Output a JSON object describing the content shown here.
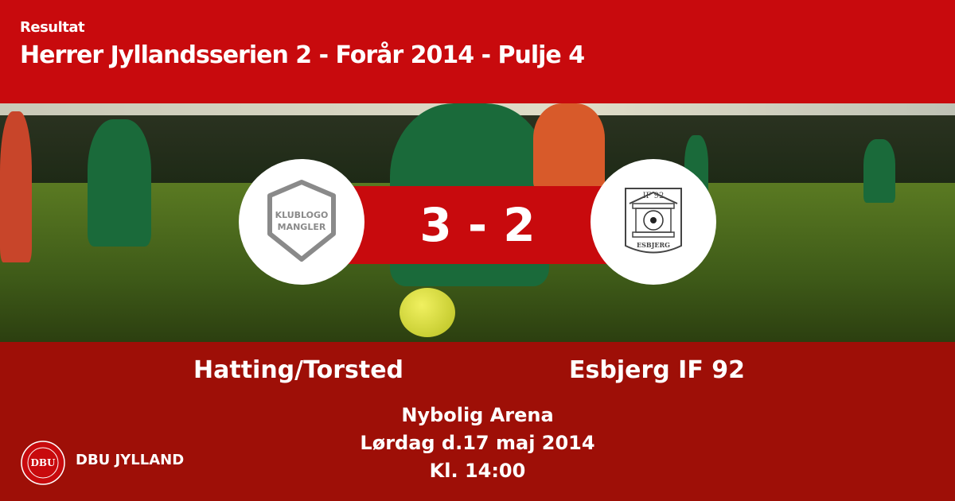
{
  "header": {
    "subtitle": "Resultat",
    "title": "Herrer Jyllandsserien 2 - Forår 2014  - Pulje 4"
  },
  "match": {
    "home_team": "Hatting/Torsted",
    "away_team": "Esbjerg IF 92",
    "score": "3 - 2",
    "home_logo_text": "KLUBLOGO MANGLER",
    "away_logo_text": "IF 92 ESBJERG",
    "venue": "Nybolig Arena",
    "date": "Lørdag d.17 maj 2014",
    "time": "Kl. 14:00"
  },
  "footer": {
    "brand": "DBU JYLLAND",
    "seal_text": "DANSK BOLDSPIL UNION 1889 DBU"
  },
  "colors": {
    "header": "#c80a0d",
    "footer": "#9e0f07"
  }
}
